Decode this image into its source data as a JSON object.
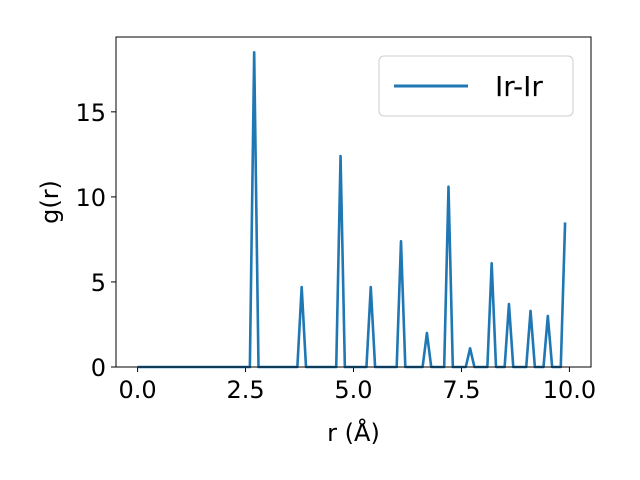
{
  "chart_data": {
    "type": "line",
    "xlabel": "r (Å)",
    "ylabel": "g(r)",
    "xlim": [
      -0.5,
      10.5
    ],
    "ylim": [
      0,
      19.4
    ],
    "xticks": [
      0.0,
      2.5,
      5.0,
      7.5,
      10.0
    ],
    "xtick_labels": [
      "0.0",
      "2.5",
      "5.0",
      "7.5",
      "10.0"
    ],
    "yticks": [
      0,
      5,
      10,
      15
    ],
    "ytick_labels": [
      "0",
      "5",
      "10",
      "15"
    ],
    "legend": {
      "position": "top-right",
      "entries": [
        "Ir-Ir"
      ]
    },
    "grid": false,
    "series": [
      {
        "name": "Ir-Ir",
        "color": "#1f77b4",
        "x": [
          0.0,
          2.6,
          2.7,
          2.8,
          3.7,
          3.8,
          3.9,
          4.6,
          4.7,
          4.8,
          5.3,
          5.4,
          5.5,
          6.0,
          6.1,
          6.2,
          6.6,
          6.7,
          6.8,
          7.1,
          7.2,
          7.3,
          7.6,
          7.7,
          7.8,
          8.1,
          8.2,
          8.3,
          8.5,
          8.6,
          8.7,
          9.0,
          9.1,
          9.2,
          9.4,
          9.5,
          9.6,
          9.8,
          9.9
        ],
        "y": [
          0,
          0,
          18.5,
          0,
          0,
          4.7,
          0,
          0,
          12.4,
          0,
          0,
          4.7,
          0,
          0,
          7.4,
          0,
          0,
          2.0,
          0,
          0,
          10.6,
          0,
          0,
          1.1,
          0,
          0,
          6.1,
          0,
          0,
          3.7,
          0,
          0,
          3.3,
          0,
          0,
          3.0,
          0,
          0,
          8.5
        ]
      }
    ]
  }
}
